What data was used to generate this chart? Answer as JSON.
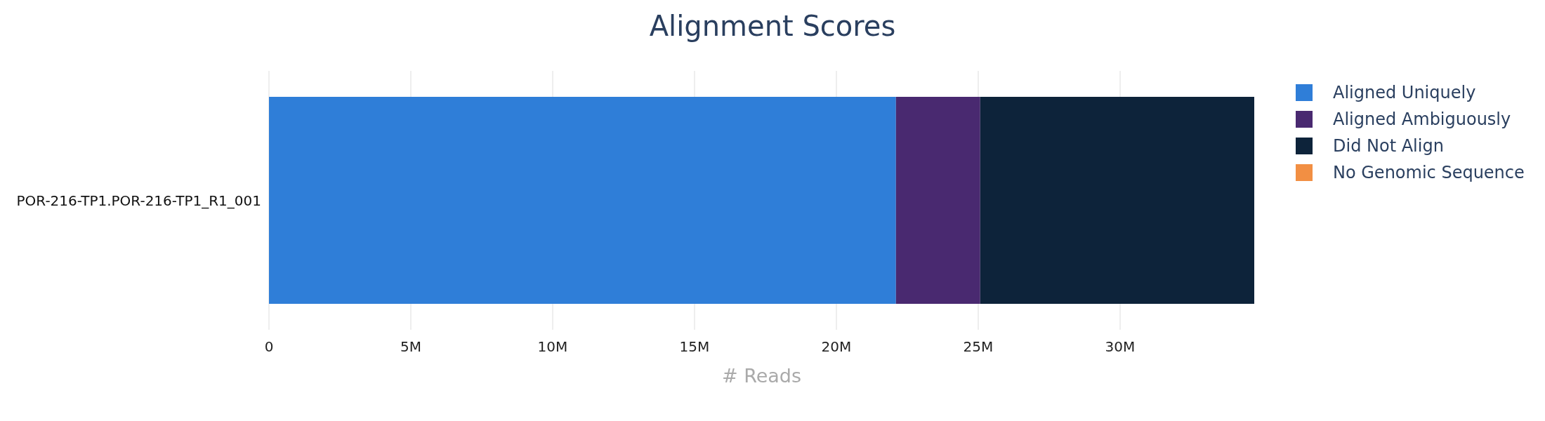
{
  "chart_data": {
    "type": "bar",
    "title": "Alignment Scores",
    "xlabel": "# Reads",
    "orientation": "horizontal",
    "stacked": true,
    "categories": [
      "POR-216-TP1.POR-216-TP1_R1_001"
    ],
    "series": [
      {
        "name": "Aligned Uniquely",
        "color": "#2f7ed8",
        "values": [
          22100000
        ]
      },
      {
        "name": "Aligned Ambiguously",
        "color": "#492970",
        "values": [
          2970000
        ]
      },
      {
        "name": "Did Not Align",
        "color": "#0d233a",
        "values": [
          9660000
        ]
      },
      {
        "name": "No Genomic Sequence",
        "color": "#f28f43",
        "values": [
          0
        ]
      }
    ],
    "xlim": [
      0,
      34730000
    ],
    "xticks": [
      0,
      {
        "value": 5000000,
        "label": "5M"
      },
      {
        "value": 10000000,
        "label": "10M"
      },
      {
        "value": 15000000,
        "label": "15M"
      },
      {
        "value": 20000000,
        "label": "20M"
      },
      {
        "value": 25000000,
        "label": "25M"
      },
      {
        "value": 30000000,
        "label": "30M"
      }
    ],
    "grid": "x",
    "legend": "top right"
  }
}
